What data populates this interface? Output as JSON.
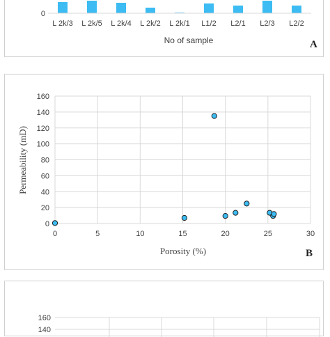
{
  "chart_data": [
    {
      "type": "bar",
      "panel_label": "A",
      "title": "",
      "xlabel": "No of sample",
      "ylabel": "",
      "categories": [
        "L 2k/3",
        "L 2k/5",
        "L 2k/4",
        "L 2k/2",
        "L 2k/1",
        "L1/2",
        "L2/1",
        "L2/3",
        "L2/2"
      ],
      "values": [
        16,
        18,
        15,
        8,
        1,
        14,
        11,
        18,
        11
      ],
      "y_ticks": [
        0
      ],
      "ylim": [
        0,
        20
      ],
      "bar_color": "#3cbcf2",
      "grid": false
    },
    {
      "type": "scatter",
      "panel_label": "B",
      "title": "",
      "xlabel": "Porosity (%)",
      "ylabel": "Permeability (mD)",
      "xlim": [
        0,
        30
      ],
      "ylim": [
        0,
        160
      ],
      "x_ticks": [
        0,
        5,
        10,
        15,
        20,
        25,
        30
      ],
      "y_ticks": [
        0,
        20,
        40,
        60,
        80,
        100,
        120,
        140,
        160
      ],
      "grid": true,
      "marker_color": "#3cbcf2",
      "points": [
        {
          "x": 0,
          "y": 0.5
        },
        {
          "x": 15.2,
          "y": 7
        },
        {
          "x": 18.7,
          "y": 135
        },
        {
          "x": 20,
          "y": 9.5
        },
        {
          "x": 21.2,
          "y": 13.5
        },
        {
          "x": 22.5,
          "y": 25
        },
        {
          "x": 25.2,
          "y": 13.5
        },
        {
          "x": 25.6,
          "y": 9.5
        },
        {
          "x": 25.7,
          "y": 12
        }
      ]
    },
    {
      "type": "bar",
      "panel_label": "",
      "title": "",
      "xlabel": "",
      "ylabel": "",
      "y_ticks": [
        140,
        160
      ],
      "ylim": [
        0,
        160
      ],
      "grid": true
    }
  ]
}
